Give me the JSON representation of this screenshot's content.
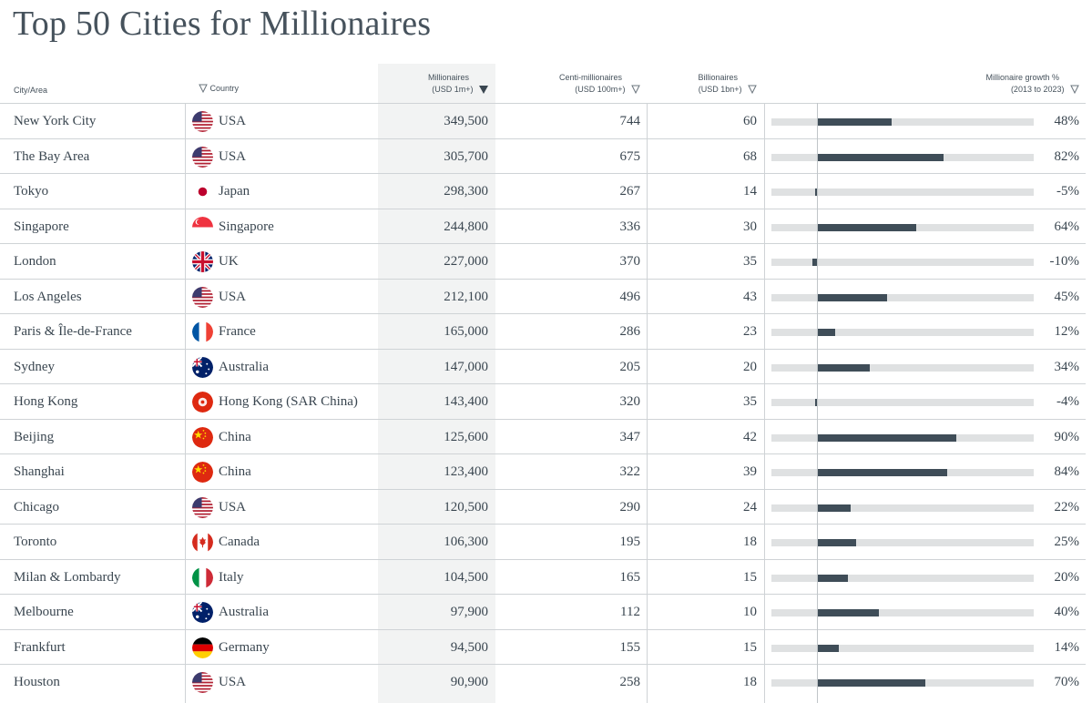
{
  "title": "Top 50 Cities for Millionaires",
  "headers": {
    "city": "City/Area",
    "country": "Country",
    "millionaires_line1": "Millionaires",
    "millionaires_line2": "(USD 1m+)",
    "centi_line1": "Centi-millionaires",
    "centi_line2": "(USD 100m+)",
    "billionaires_line1": "Billionaires",
    "billionaires_line2": "(USD 1bn+)",
    "growth_line1": "Millionaire growth %",
    "growth_line2": "(2013 to 2023)"
  },
  "sort": {
    "column": "millionaires",
    "direction": "descending"
  },
  "colors": {
    "bar": "#3f4d58",
    "track": "#dfe1e2",
    "sorted_column_bg": "#f2f3f3",
    "text": "#3a4650"
  },
  "rows": [
    {
      "city": "New York City",
      "country": "USA",
      "flag_icon": "usa-flag-icon",
      "millionaires": "349,500",
      "centi": "744",
      "billionaires": "60",
      "growth_label": "48%",
      "growth": 48
    },
    {
      "city": "The Bay Area",
      "country": "USA",
      "flag_icon": "usa-flag-icon",
      "millionaires": "305,700",
      "centi": "675",
      "billionaires": "68",
      "growth_label": "82%",
      "growth": 82
    },
    {
      "city": "Tokyo",
      "country": "Japan",
      "flag_icon": "japan-flag-icon",
      "millionaires": "298,300",
      "centi": "267",
      "billionaires": "14",
      "growth_label": "-5%",
      "growth": -5
    },
    {
      "city": "Singapore",
      "country": "Singapore",
      "flag_icon": "singapore-flag-icon",
      "millionaires": "244,800",
      "centi": "336",
      "billionaires": "30",
      "growth_label": "64%",
      "growth": 64
    },
    {
      "city": "London",
      "country": "UK",
      "flag_icon": "uk-flag-icon",
      "millionaires": "227,000",
      "centi": "370",
      "billionaires": "35",
      "growth_label": "-10%",
      "growth": -10
    },
    {
      "city": "Los Angeles",
      "country": "USA",
      "flag_icon": "usa-flag-icon",
      "millionaires": "212,100",
      "centi": "496",
      "billionaires": "43",
      "growth_label": "45%",
      "growth": 45
    },
    {
      "city": "Paris & Île-de-France",
      "country": "France",
      "flag_icon": "france-flag-icon",
      "millionaires": "165,000",
      "centi": "286",
      "billionaires": "23",
      "growth_label": "12%",
      "growth": 12
    },
    {
      "city": "Sydney",
      "country": "Australia",
      "flag_icon": "australia-flag-icon",
      "millionaires": "147,000",
      "centi": "205",
      "billionaires": "20",
      "growth_label": "34%",
      "growth": 34
    },
    {
      "city": "Hong Kong",
      "country": "Hong Kong (SAR China)",
      "flag_icon": "hong-kong-flag-icon",
      "millionaires": "143,400",
      "centi": "320",
      "billionaires": "35",
      "growth_label": "-4%",
      "growth": -4
    },
    {
      "city": "Beijing",
      "country": "China",
      "flag_icon": "china-flag-icon",
      "millionaires": "125,600",
      "centi": "347",
      "billionaires": "42",
      "growth_label": "90%",
      "growth": 90
    },
    {
      "city": "Shanghai",
      "country": "China",
      "flag_icon": "china-flag-icon",
      "millionaires": "123,400",
      "centi": "322",
      "billionaires": "39",
      "growth_label": "84%",
      "growth": 84
    },
    {
      "city": "Chicago",
      "country": "USA",
      "flag_icon": "usa-flag-icon",
      "millionaires": "120,500",
      "centi": "290",
      "billionaires": "24",
      "growth_label": "22%",
      "growth": 22
    },
    {
      "city": "Toronto",
      "country": "Canada",
      "flag_icon": "canada-flag-icon",
      "millionaires": "106,300",
      "centi": "195",
      "billionaires": "18",
      "growth_label": "25%",
      "growth": 25
    },
    {
      "city": "Milan & Lombardy",
      "country": "Italy",
      "flag_icon": "italy-flag-icon",
      "millionaires": "104,500",
      "centi": "165",
      "billionaires": "15",
      "growth_label": "20%",
      "growth": 20
    },
    {
      "city": "Melbourne",
      "country": "Australia",
      "flag_icon": "australia-flag-icon",
      "millionaires": "97,900",
      "centi": "112",
      "billionaires": "10",
      "growth_label": "40%",
      "growth": 40
    },
    {
      "city": "Frankfurt",
      "country": "Germany",
      "flag_icon": "germany-flag-icon",
      "millionaires": "94,500",
      "centi": "155",
      "billionaires": "15",
      "growth_label": "14%",
      "growth": 14
    },
    {
      "city": "Houston",
      "country": "USA",
      "flag_icon": "usa-flag-icon",
      "millionaires": "90,900",
      "centi": "258",
      "billionaires": "18",
      "growth_label": "70%",
      "growth": 70
    }
  ]
}
